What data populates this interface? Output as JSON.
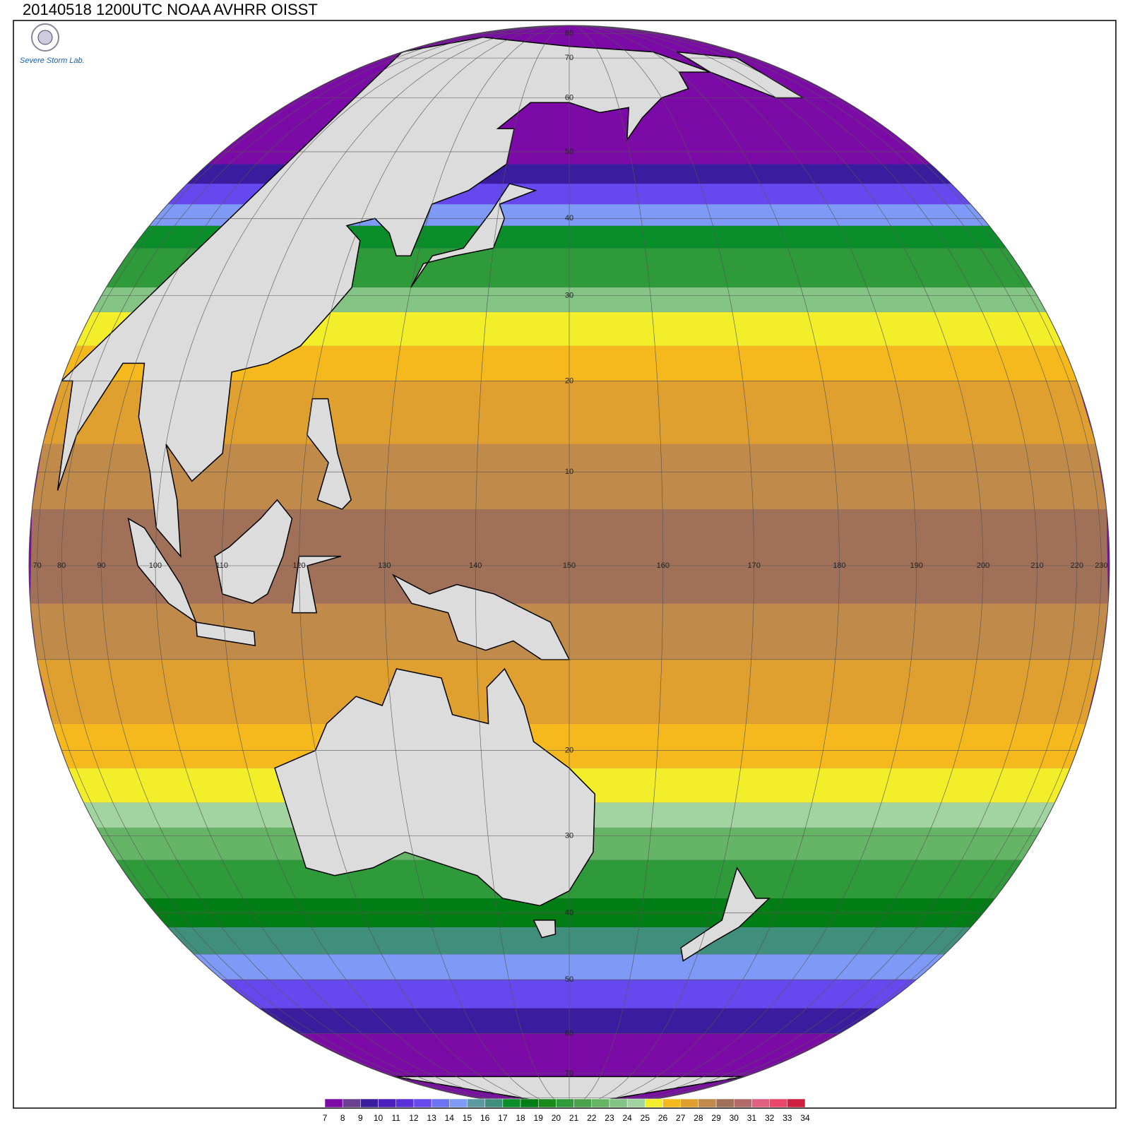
{
  "header": {
    "title": "20140518 1200UTC NOAA AVHRR OISST",
    "logo_text": "Severe Storm Lab."
  },
  "map": {
    "meridian_labels": [
      70,
      80,
      90,
      100,
      110,
      120,
      130,
      140,
      150,
      160,
      170,
      180,
      190,
      200,
      210,
      220,
      230
    ],
    "parallel_labels_north": [
      80,
      70,
      60,
      50,
      40,
      30,
      20,
      10
    ],
    "parallel_labels_south": [
      20,
      30,
      40,
      50,
      60,
      70
    ]
  },
  "colorbar": {
    "levels": [
      7,
      8,
      9,
      10,
      11,
      12,
      13,
      14,
      15,
      16,
      17,
      18,
      19,
      20,
      21,
      22,
      23,
      24,
      25,
      26,
      27,
      28,
      29,
      30,
      31,
      32,
      33,
      34
    ],
    "colors": [
      "#7c0aa6",
      "#6b3f8f",
      "#3a1d9e",
      "#4a1fbe",
      "#5a30d8",
      "#6649ee",
      "#6c73f2",
      "#7e9af6",
      "#5c9aa0",
      "#3f8f7c",
      "#0a8e2a",
      "#007d14",
      "#1a8a1a",
      "#2e9a3a",
      "#4aa34c",
      "#66b566",
      "#84c484",
      "#a2d4a2",
      "#f2ee2a",
      "#f5b91e",
      "#e0a030",
      "#c08a4a",
      "#a07058",
      "#b06a6a",
      "#e06080",
      "#e84868",
      "#d02040"
    ]
  }
}
